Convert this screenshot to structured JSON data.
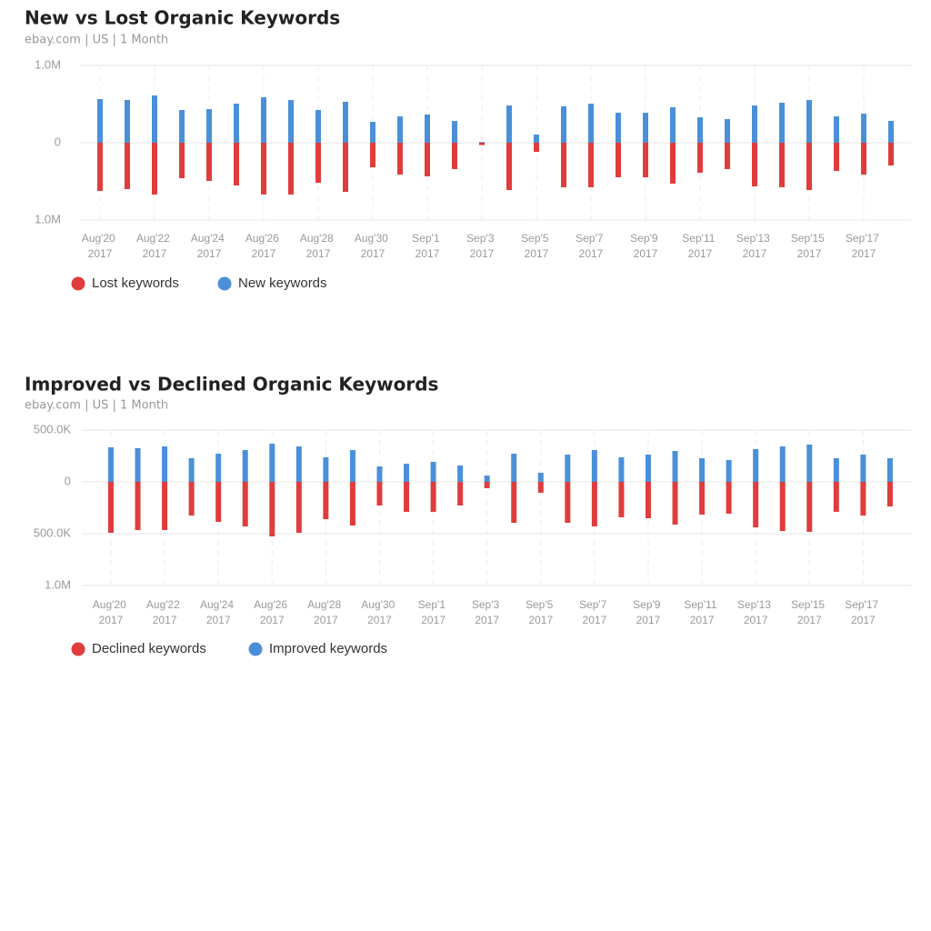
{
  "chart_data": [
    {
      "type": "bar",
      "title": "New vs Lost Organic Keywords",
      "subtitle": "ebay.com | US | 1 Month",
      "categories": [
        "Aug'20\n2017",
        null,
        "Aug'22\n2017",
        null,
        "Aug'24\n2017",
        null,
        "Aug'26\n2017",
        null,
        "Aug'28\n2017",
        null,
        "Aug'30\n2017",
        null,
        "Sep'1\n2017",
        null,
        "Sep'3\n2017",
        null,
        "Sep'5\n2017",
        null,
        "Sep'7\n2017",
        null,
        "Sep'9\n2017",
        null,
        "Sep'11\n2017",
        null,
        "Sep'13\n2017",
        null,
        "Sep'15\n2017",
        null,
        "Sep'17\n2017",
        null
      ],
      "series": [
        {
          "name": "Lost keywords",
          "color": "#e03c3c",
          "values": [
            -624000,
            -600000,
            -670000,
            -459000,
            -494000,
            -553000,
            -670000,
            -670000,
            -518000,
            -635000,
            -318000,
            -412000,
            -435000,
            -341000,
            -30000,
            -612000,
            -118000,
            -576000,
            -576000,
            -447000,
            -447000,
            -529000,
            -388000,
            -341000,
            -565000,
            -576000,
            -612000,
            -365000,
            -412000,
            -294000
          ]
        },
        {
          "name": "New keywords",
          "color": "#4a90d9",
          "values": [
            565000,
            553000,
            612000,
            424000,
            435000,
            506000,
            588000,
            553000,
            424000,
            530000,
            271000,
            341000,
            365000,
            282000,
            10000,
            482000,
            106000,
            471000,
            506000,
            388000,
            388000,
            459000,
            329000,
            306000,
            482000,
            518000,
            553000,
            341000,
            376000,
            282000
          ]
        }
      ],
      "ylim": [
        -1000000,
        1000000
      ],
      "yticks": [
        {
          "value": -1000000,
          "label": "1.0M"
        },
        0,
        {
          "value": 1000000,
          "label": "1.0M"
        }
      ],
      "grid": true,
      "legend": "bottom-left"
    },
    {
      "type": "bar",
      "title": "Improved vs Declined Organic Keywords",
      "subtitle": "ebay.com | US | 1 Month",
      "categories": [
        "Aug'20\n2017",
        null,
        "Aug'22\n2017",
        null,
        "Aug'24\n2017",
        null,
        "Aug'26\n2017",
        null,
        "Aug'28\n2017",
        null,
        "Aug'30\n2017",
        null,
        "Sep'1\n2017",
        null,
        "Sep'3\n2017",
        null,
        "Sep'5\n2017",
        null,
        "Sep'7\n2017",
        null,
        "Sep'9\n2017",
        null,
        "Sep'11\n2017",
        null,
        "Sep'13\n2017",
        null,
        "Sep'15\n2017",
        null,
        "Sep'17\n2017",
        null
      ],
      "series": [
        {
          "name": "Declined keywords",
          "color": "#e03c3c",
          "values": [
            -491000,
            -465000,
            -465000,
            -325000,
            -386000,
            -430000,
            -526000,
            -491000,
            -360000,
            -421000,
            -228000,
            -289000,
            -289000,
            -228000,
            -61000,
            -395000,
            -105000,
            -395000,
            -430000,
            -342000,
            -351000,
            -412000,
            -316000,
            -307000,
            -439000,
            -474000,
            -482000,
            -289000,
            -325000,
            -237000
          ]
        },
        {
          "name": "Improved keywords",
          "color": "#4a90d9",
          "values": [
            333000,
            325000,
            342000,
            228000,
            272000,
            307000,
            368000,
            342000,
            237000,
            307000,
            149000,
            175000,
            193000,
            158000,
            61000,
            272000,
            88000,
            263000,
            307000,
            237000,
            263000,
            298000,
            228000,
            211000,
            316000,
            342000,
            360000,
            228000,
            263000,
            228000
          ]
        }
      ],
      "ylim": [
        -1000000,
        500000
      ],
      "yticks": [
        {
          "value": -1000000,
          "label": "1.0M"
        },
        {
          "value": -500000,
          "label": "500.0K"
        },
        0,
        {
          "value": 500000,
          "label": "500.0K"
        }
      ],
      "grid": true,
      "legend": "bottom-left"
    }
  ]
}
